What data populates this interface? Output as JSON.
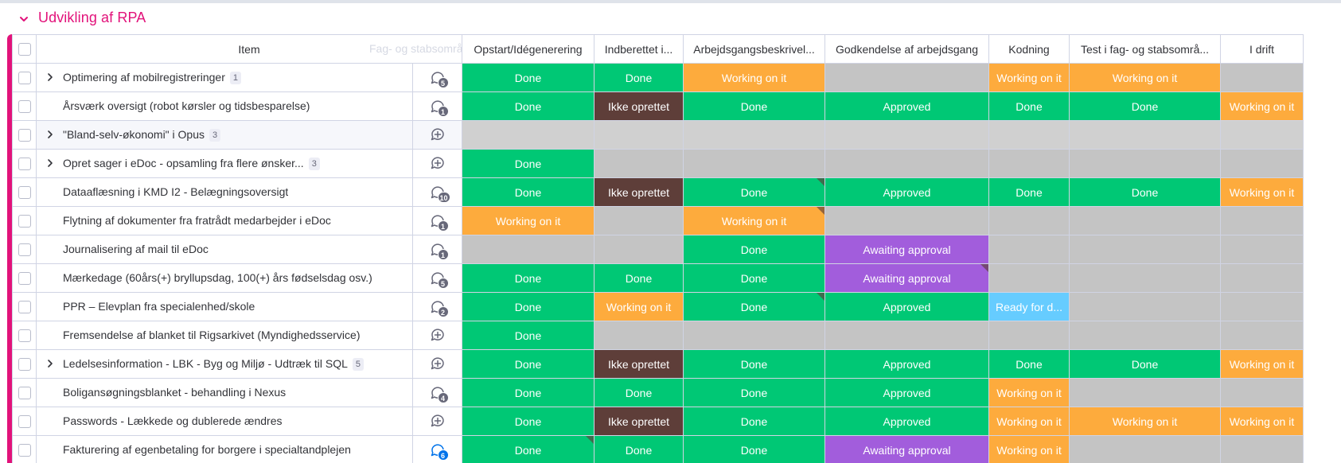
{
  "group": {
    "title": "Udvikling af RPA",
    "color": "#e2127a"
  },
  "columns": {
    "item": "Item",
    "ghost": "Fag- og stabsområde",
    "status": [
      "Opstart/Idégenerering",
      "Indberettet i...",
      "Arbejdsgangsbeskrivel...",
      "Godkendelse af arbejdsgang",
      "Kodning",
      "Test i fag- og stabsområ...",
      "I drift"
    ]
  },
  "status_colors": {
    "Done": "#00c875",
    "Working on it": "#fdab3d",
    "Ikke oprettet": "#5e3e39",
    "Approved": "#00c875",
    "Awaiting approval": "#a25ddc",
    "Ready for d...": "#66ccff",
    "": "#c4c4c4"
  },
  "rows": [
    {
      "name": "Optimering af mobilregistreringer",
      "expandable": true,
      "count": "1",
      "updates": "5",
      "updates_icon": "chat-bubble-icon",
      "cells": [
        "Done",
        "Done",
        "Working on it",
        "",
        "Working on it",
        "Working on it",
        ""
      ]
    },
    {
      "name": "Årsværk oversigt (robot kørsler og tidsbesparelse)",
      "expandable": false,
      "count": "",
      "updates": "1",
      "updates_icon": "chat-bubble-icon",
      "cells": [
        "Done",
        "Ikke oprettet",
        "Done",
        "Approved",
        "Done",
        "Done",
        "Working on it"
      ]
    },
    {
      "name": "\"Bland-selv-økonomi\" i Opus",
      "expandable": true,
      "count": "3",
      "updates": "",
      "updates_icon": "add-update-icon",
      "highlight": true,
      "cells": [
        "",
        "",
        "",
        "",
        "",
        "",
        ""
      ]
    },
    {
      "name": "Opret sager i eDoc - opsamling fra flere ønsker...",
      "expandable": true,
      "count": "3",
      "updates": "",
      "updates_icon": "add-update-icon",
      "cells": [
        "Done",
        "",
        "",
        "",
        "",
        "",
        ""
      ]
    },
    {
      "name": "Dataaflæsning i KMD I2 - Belægningsoversigt",
      "expandable": false,
      "count": "",
      "updates": "10",
      "updates_icon": "chat-bubble-icon",
      "cells": [
        "Done",
        "Ikke oprettet",
        "Done",
        "Approved",
        "Done",
        "Done",
        "Working on it"
      ],
      "fold": [
        2
      ]
    },
    {
      "name": "Flytning af dokumenter fra fratrådt medarbejder i eDoc",
      "expandable": false,
      "count": "",
      "updates": "1",
      "updates_icon": "chat-bubble-icon",
      "cells": [
        "Working on it",
        "",
        "Working on it",
        "",
        "",
        "",
        ""
      ],
      "fold": [
        2
      ]
    },
    {
      "name": "Journalisering af mail til eDoc",
      "expandable": false,
      "count": "",
      "updates": "1",
      "updates_icon": "chat-bubble-icon",
      "cells": [
        "",
        "",
        "Done",
        "Awaiting approval",
        "",
        "",
        ""
      ]
    },
    {
      "name": "Mærkedage (60års(+) bryllupsdag, 100(+) års fødselsdag osv.)",
      "expandable": false,
      "count": "",
      "updates": "5",
      "updates_icon": "chat-bubble-icon",
      "cells": [
        "Done",
        "Done",
        "Done",
        "Awaiting approval",
        "",
        "",
        ""
      ],
      "fold": [
        3
      ]
    },
    {
      "name": "PPR – Elevplan fra specialenhed/skole",
      "expandable": false,
      "count": "",
      "updates": "2",
      "updates_icon": "chat-bubble-icon",
      "cells": [
        "Done",
        "Working on it",
        "Done",
        "Approved",
        "Ready for d...",
        "",
        ""
      ],
      "fold": [
        2
      ]
    },
    {
      "name": "Fremsendelse af blanket til Rigsarkivet (Myndighedsservice)",
      "expandable": false,
      "count": "",
      "updates": "",
      "updates_icon": "add-update-icon",
      "cells": [
        "Done",
        "",
        "",
        "",
        "",
        "",
        ""
      ]
    },
    {
      "name": "Ledelsesinformation - LBK - Byg og Miljø - Udtræk til SQL",
      "expandable": true,
      "count": "5",
      "updates": "",
      "updates_icon": "add-update-icon",
      "cells": [
        "Done",
        "Ikke oprettet",
        "Done",
        "Approved",
        "Done",
        "Done",
        "Working on it"
      ]
    },
    {
      "name": "Boligansøgningsblanket - behandling i Nexus",
      "expandable": false,
      "count": "",
      "updates": "4",
      "updates_icon": "chat-bubble-icon",
      "cells": [
        "Done",
        "Done",
        "Done",
        "Approved",
        "Working on it",
        "",
        ""
      ]
    },
    {
      "name": "Passwords - Lækkede og dublerede ændres",
      "expandable": false,
      "count": "",
      "updates": "",
      "updates_icon": "add-update-icon",
      "cells": [
        "Done",
        "Ikke oprettet",
        "Done",
        "Approved",
        "Working on it",
        "Working on it",
        "Working on it"
      ]
    },
    {
      "name": "Fakturering af egenbetaling for borgere i specialtandplejen",
      "expandable": false,
      "count": "",
      "updates": "6",
      "updates_icon": "chat-bubble-icon",
      "updates_unread": true,
      "cells": [
        "Done",
        "Done",
        "Done",
        "Awaiting approval",
        "Working on it",
        "",
        ""
      ],
      "fold": [
        0
      ]
    }
  ]
}
